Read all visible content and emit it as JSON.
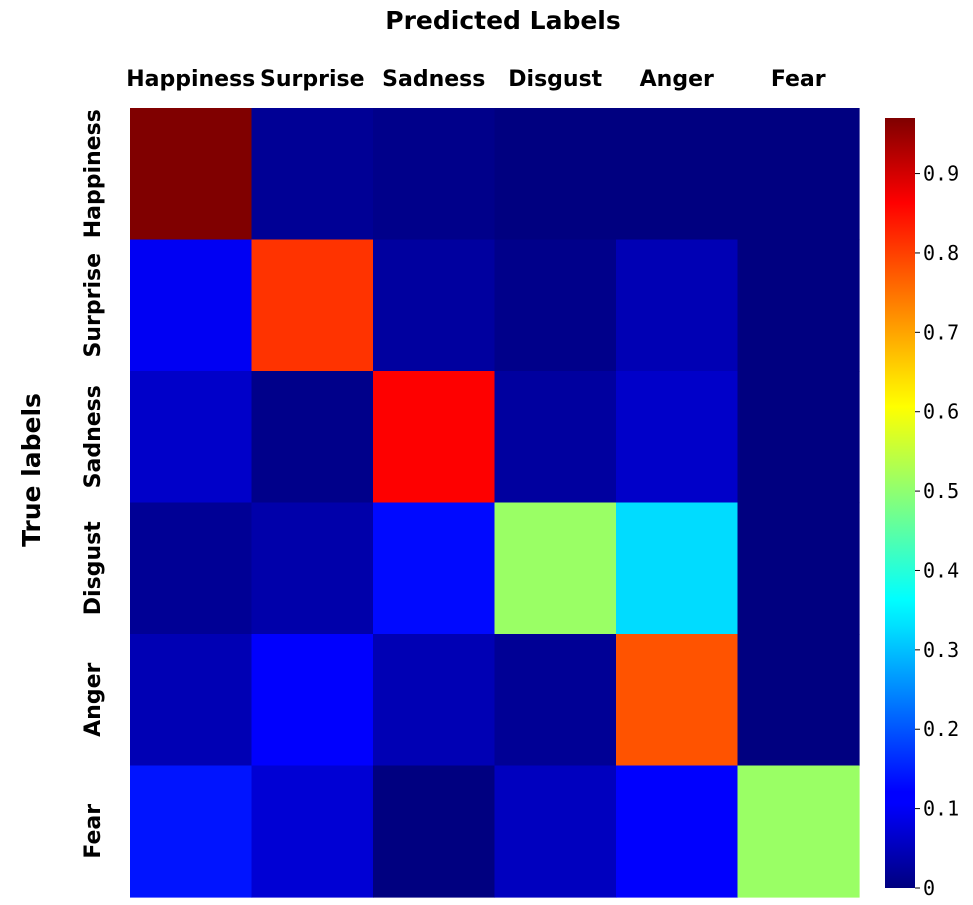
{
  "chart_data": {
    "type": "heatmap",
    "xlabel": "Predicted Labels",
    "ylabel": "True labels",
    "x_categories": [
      "Happiness",
      "Surprise",
      "Sadness",
      "Disgust",
      "Anger",
      "Fear"
    ],
    "y_categories": [
      "Happiness",
      "Surprise",
      "Sadness",
      "Disgust",
      "Anger",
      "Fear"
    ],
    "values": [
      [
        0.97,
        0.02,
        0.01,
        0.0,
        0.0,
        0.0
      ],
      [
        0.11,
        0.8,
        0.03,
        0.01,
        0.05,
        0.0
      ],
      [
        0.07,
        0.01,
        0.85,
        0.03,
        0.07,
        0.0
      ],
      [
        0.02,
        0.04,
        0.13,
        0.51,
        0.33,
        0.0
      ],
      [
        0.05,
        0.12,
        0.05,
        0.02,
        0.77,
        0.0
      ],
      [
        0.14,
        0.08,
        0.0,
        0.06,
        0.12,
        0.51
      ]
    ],
    "colormap": "jet",
    "colorbar": {
      "min": 0,
      "max": 0.97,
      "ticks": [
        0,
        0.1,
        0.2,
        0.3,
        0.4,
        0.5,
        0.6,
        0.7,
        0.8,
        0.9
      ],
      "tick_labels": [
        "0",
        "0.1",
        "0.2",
        "0.3",
        "0.4",
        "0.5",
        "0.6",
        "0.7",
        "0.8",
        "0.9"
      ]
    },
    "grid": false,
    "legend": "colorbar-right"
  }
}
